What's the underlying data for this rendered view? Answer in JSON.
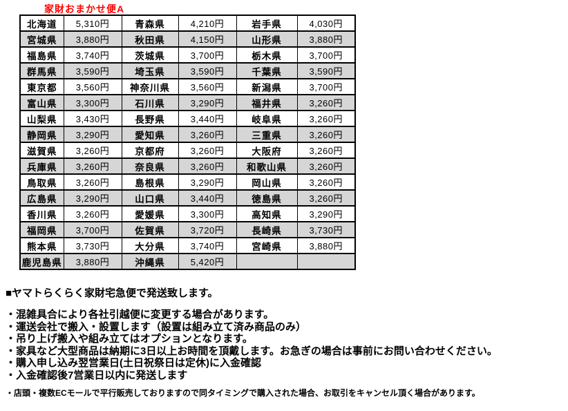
{
  "title": "家財おまかせ便A",
  "colors": {
    "title_red": "#FF0000",
    "row_alt_gray": "#D6D6D6",
    "table_border": "#000000"
  },
  "shipping_table": {
    "rows": [
      [
        "北海道",
        "5,310円",
        "青森県",
        "4,210円",
        "岩手県",
        "4,030円"
      ],
      [
        "宮城県",
        "3,880円",
        "秋田県",
        "4,150円",
        "山形県",
        "3,880円"
      ],
      [
        "福島県",
        "3,740円",
        "茨城県",
        "3,700円",
        "栃木県",
        "3,700円"
      ],
      [
        "群馬県",
        "3,590円",
        "埼玉県",
        "3,590円",
        "千葉県",
        "3,590円"
      ],
      [
        "東京都",
        "3,560円",
        "神奈川県",
        "3,560円",
        "新潟県",
        "3,700円"
      ],
      [
        "富山県",
        "3,300円",
        "石川県",
        "3,290円",
        "福井県",
        "3,260円"
      ],
      [
        "山梨県",
        "3,430円",
        "長野県",
        "3,440円",
        "岐阜県",
        "3,260円"
      ],
      [
        "静岡県",
        "3,290円",
        "愛知県",
        "3,260円",
        "三重県",
        "3,260円"
      ],
      [
        "滋賀県",
        "3,260円",
        "京都府",
        "3,260円",
        "大阪府",
        "3,260円"
      ],
      [
        "兵庫県",
        "3,260円",
        "奈良県",
        "3,260円",
        "和歌山県",
        "3,260円"
      ],
      [
        "鳥取県",
        "3,260円",
        "島根県",
        "3,290円",
        "岡山県",
        "3,260円"
      ],
      [
        "広島県",
        "3,290円",
        "山口県",
        "3,440円",
        "徳島県",
        "3,260円"
      ],
      [
        "香川県",
        "3,260円",
        "愛媛県",
        "3,300円",
        "高知県",
        "3,290円"
      ],
      [
        "福岡県",
        "3,700円",
        "佐賀県",
        "3,720円",
        "長崎県",
        "3,730円"
      ],
      [
        "熊本県",
        "3,730円",
        "大分県",
        "3,740円",
        "宮崎県",
        "3,880円"
      ],
      [
        "鹿児島県",
        "3,880円",
        "沖縄県",
        "5,420円",
        "",
        ""
      ]
    ]
  },
  "notes": {
    "heading": "■ヤマトらくらく家財宅急便で発送致します。",
    "bullets": [
      "・混雑具合により各社引越便に変更する場合があります。",
      "・運送会社で搬入・設置します（設置は組み立て済み商品のみ）",
      "・吊り上げ搬入や組み立てはオプションとなります。",
      "・家具など大型商品は納期に3日以上お時間を頂戴します。お急ぎの場合は事前にお問い合わせください。",
      "・購入申し込み翌営業日(土日祝祭日は定休)に入金確認",
      "・入金確認後7営業日以内に発送します"
    ],
    "fine_print": "・店頭・複数ECモールで平行販売しておりますので同タイミングで購入された場合、お取引をキャンセル頂く場合があります。"
  }
}
